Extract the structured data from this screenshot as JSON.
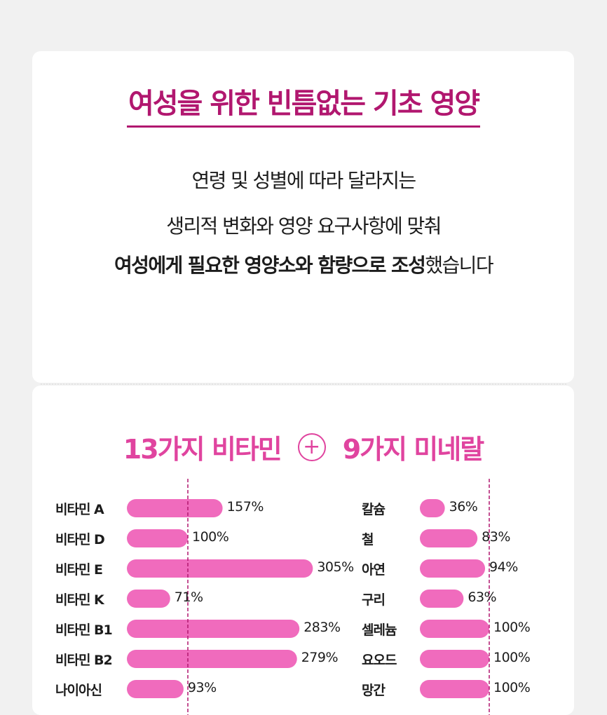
{
  "intro": {
    "title": "여성을 위한 빈틈없는 기초 영양",
    "line1": "연령 및 성별에 따라 달라지는",
    "line2": "생리적 변화와 영양 요구사항에 맞춰",
    "line3_bold": "여성에게 필요한 영양소와 함량으로 조성",
    "line3_rest": "했습니다"
  },
  "heading": {
    "left": "13가지 비타민",
    "plus": "+",
    "right": "9가지 미네랄"
  },
  "colors": {
    "bar": "#f06bbd",
    "title": "#b1176f",
    "heading": "#e0449f",
    "reference_line": "#b1176f"
  },
  "chart_data": [
    {
      "type": "bar",
      "orientation": "horizontal",
      "categories": [
        "비타민 A",
        "비타민 D",
        "비타민 E",
        "비타민 K",
        "비타민 B1",
        "비타민 B2",
        "나이아신"
      ],
      "values": [
        157,
        100,
        305,
        71,
        283,
        279,
        93
      ],
      "value_labels": [
        "157%",
        "100%",
        "305%",
        "71%",
        "283%",
        "279%",
        "93%"
      ],
      "reference_value": 100,
      "xlim": [
        0,
        305
      ]
    },
    {
      "type": "bar",
      "orientation": "horizontal",
      "categories": [
        "칼슘",
        "철",
        "아연",
        "구리",
        "셀레늄",
        "요오드",
        "망간"
      ],
      "values": [
        36,
        83,
        94,
        63,
        100,
        100,
        100
      ],
      "value_labels": [
        "36%",
        "83%",
        "94%",
        "63%",
        "100%",
        "100%",
        "100%"
      ],
      "reference_value": 100,
      "xlim": [
        0,
        100
      ]
    }
  ]
}
